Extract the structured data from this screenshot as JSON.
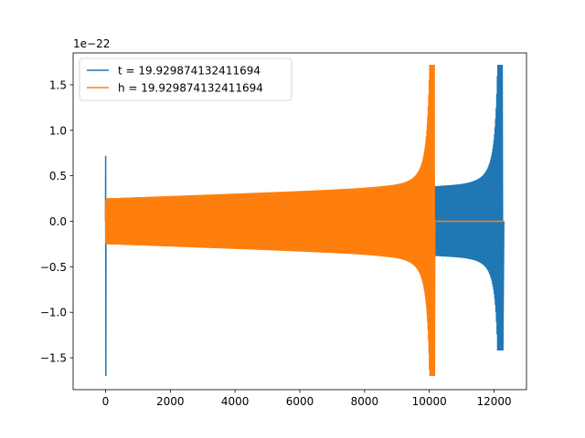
{
  "chart_data": {
    "type": "line",
    "title": "",
    "xlabel": "",
    "ylabel": "",
    "offset_text": "1e−22",
    "xlim": [
      -1000,
      13000
    ],
    "ylim": [
      -1.85,
      1.85
    ],
    "xticks": [
      0,
      2000,
      4000,
      6000,
      8000,
      10000,
      12000
    ],
    "xtick_labels": [
      "0",
      "2000",
      "4000",
      "6000",
      "8000",
      "10000",
      "12000"
    ],
    "yticks": [
      -1.5,
      -1.0,
      -0.5,
      0.0,
      0.5,
      1.0,
      1.5
    ],
    "ytick_labels": [
      "−1.5",
      "−1.0",
      "−0.5",
      "0.0",
      "0.5",
      "1.0",
      "1.5"
    ],
    "grid": false,
    "legend_position": "top-left",
    "series": [
      {
        "name": "t = 19.929874132411694",
        "color": "#1f77b4",
        "shape": "chirp",
        "x_start": 0,
        "x_merger": 12250,
        "x_end": 12300,
        "amp_start": 0.25,
        "amp_mid": 0.37,
        "peak_max": 1.72,
        "peak_min": -1.42,
        "spike_max": 0.72,
        "spike_min": -1.7
      },
      {
        "name": "h = 19.929874132411694",
        "color": "#ff7f0e",
        "shape": "chirp",
        "x_start": 0,
        "x_merger": 10150,
        "x_end": 10170,
        "amp_start": 0.25,
        "amp_mid": 0.36,
        "peak_max": 1.72,
        "peak_min": -1.7,
        "spike_max": 0.22,
        "spike_min": -0.25,
        "tail_to": 12300,
        "tail_value": 0.0
      }
    ]
  }
}
